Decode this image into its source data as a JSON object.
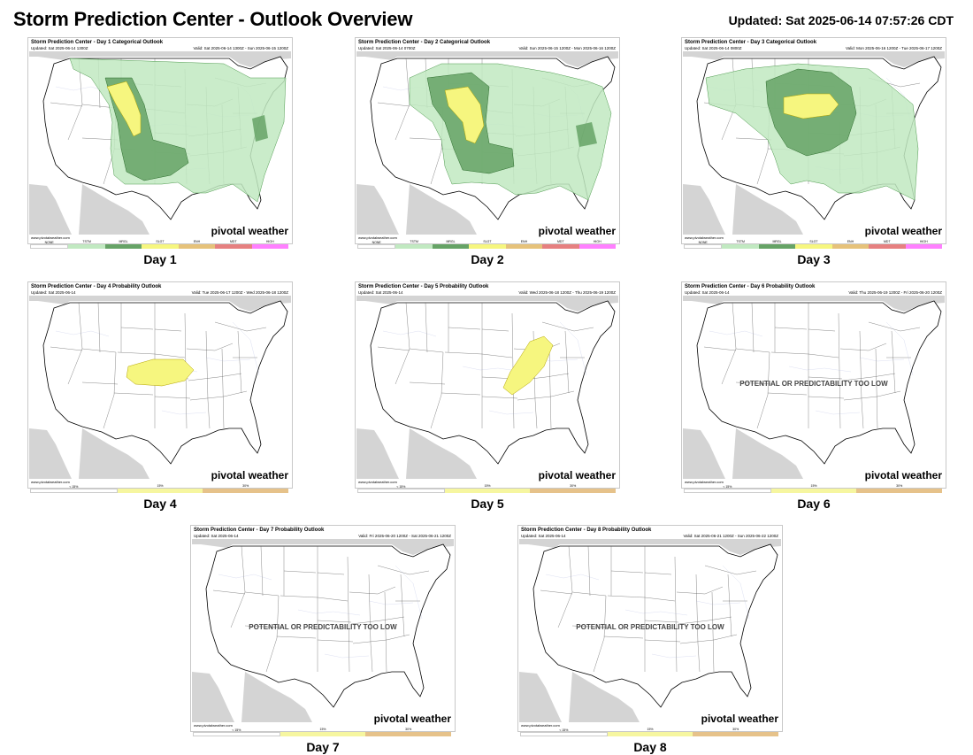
{
  "header": {
    "title": "Storm Prediction Center - Outlook Overview",
    "updated": "Updated: Sat 2025-06-14 07:57:26 CDT"
  },
  "colors": {
    "tstm": "#c1e9c1",
    "mrgl": "#66a366",
    "slgt": "#f6f67f",
    "enh": "#e6c27a",
    "mdt": "#e68080",
    "high": "#ff80ff",
    "prob15": "#f6f6a0",
    "prob30": "#e6c28a"
  },
  "panels": [
    {
      "title": "Storm Prediction Center - Day 1 Categorical Outlook",
      "updated": "Updated: Sat 2025-06-14 1300Z",
      "valid": "Valid: Sat 2025-06-14 1300Z - Sun 2025-06-15 1200Z",
      "site": "www.pivotalweather.com",
      "brand": "pivotal weather",
      "label": "Day 1",
      "legend": [
        "NONE",
        "TSTM",
        "MRGL",
        "SLGT",
        "ENH",
        "MDT",
        "HIGH"
      ]
    },
    {
      "title": "Storm Prediction Center - Day 2 Categorical Outlook",
      "updated": "Updated: Sat 2025-06-14 0700Z",
      "valid": "Valid: Sun 2025-06-15 1200Z - Mon 2025-06-16 1200Z",
      "site": "www.pivotalweather.com",
      "brand": "pivotal weather",
      "label": "Day 2",
      "legend": [
        "NONE",
        "TSTM",
        "MRGL",
        "SLGT",
        "ENH",
        "MDT",
        "HIGH"
      ]
    },
    {
      "title": "Storm Prediction Center - Day 3 Categorical Outlook",
      "updated": "Updated: Sat 2025-06-14 0800Z",
      "valid": "Valid: Mon 2025-06-16 1200Z - Tue 2025-06-17 1200Z",
      "site": "www.pivotalweather.com",
      "brand": "pivotal weather",
      "label": "Day 3",
      "legend": [
        "NONE",
        "TSTM",
        "MRGL",
        "SLGT",
        "ENH",
        "MDT",
        "HIGH"
      ]
    },
    {
      "title": "Storm Prediction Center - Day 4 Probability Outlook",
      "updated": "Updated: Sat 2025-06-14",
      "valid": "Valid: Tue 2025-06-17 1200Z - Wed 2025-06-18 1200Z",
      "site": "www.pivotalweather.com",
      "brand": "pivotal weather",
      "label": "Day 4",
      "legend": [
        "< 15%",
        "15%",
        "30%"
      ]
    },
    {
      "title": "Storm Prediction Center - Day 5 Probability Outlook",
      "updated": "Updated: Sat 2025-06-14",
      "valid": "Valid: Wed 2025-06-18 1200Z - Thu 2025-06-19 1200Z",
      "site": "www.pivotalweather.com",
      "brand": "pivotal weather",
      "label": "Day 5",
      "legend": [
        "< 15%",
        "15%",
        "30%"
      ]
    },
    {
      "title": "Storm Prediction Center - Day 6 Probability Outlook",
      "updated": "Updated: Sat 2025-06-14",
      "valid": "Valid: Thu 2025-06-19 1200Z - Fri 2025-06-20 1200Z",
      "site": "www.pivotalweather.com",
      "brand": "pivotal weather",
      "label": "Day 6",
      "notice": "POTENTIAL OR PREDICTABILITY TOO LOW",
      "legend": [
        "< 15%",
        "15%",
        "30%"
      ]
    },
    {
      "title": "Storm Prediction Center - Day 7 Probability Outlook",
      "updated": "Updated: Sat 2025-06-14",
      "valid": "Valid: Fri 2025-06-20 1200Z - Sat 2025-06-21 1200Z",
      "site": "www.pivotalweather.com",
      "brand": "pivotal weather",
      "label": "Day 7",
      "notice": "POTENTIAL OR PREDICTABILITY TOO LOW",
      "legend": [
        "< 15%",
        "15%",
        "30%"
      ]
    },
    {
      "title": "Storm Prediction Center - Day 8 Probability Outlook",
      "updated": "Updated: Sat 2025-06-14",
      "valid": "Valid: Sat 2025-06-21 1200Z - Sun 2025-06-22 1200Z",
      "site": "www.pivotalweather.com",
      "brand": "pivotal weather",
      "label": "Day 8",
      "notice": "POTENTIAL OR PREDICTABILITY TOO LOW",
      "legend": [
        "< 15%",
        "15%",
        "30%"
      ]
    }
  ]
}
